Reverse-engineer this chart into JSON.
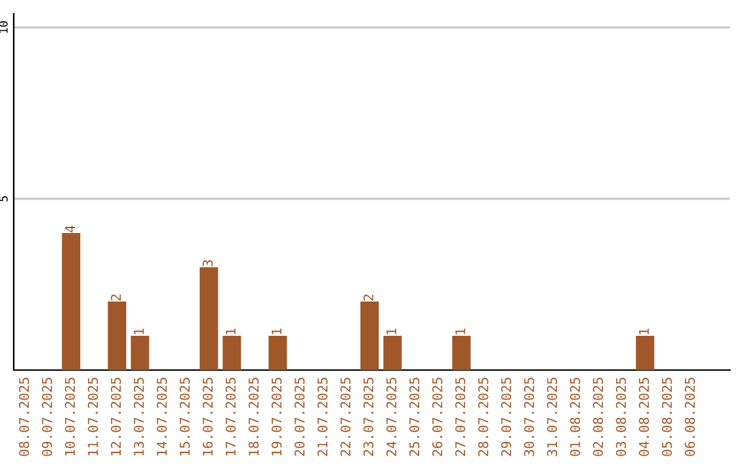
{
  "chart_data": {
    "type": "bar",
    "categories": [
      "08.07.2025",
      "09.07.2025",
      "10.07.2025",
      "11.07.2025",
      "12.07.2025",
      "13.07.2025",
      "14.07.2025",
      "15.07.2025",
      "16.07.2025",
      "17.07.2025",
      "18.07.2025",
      "19.07.2025",
      "20.07.2025",
      "21.07.2025",
      "22.07.2025",
      "23.07.2025",
      "24.07.2025",
      "25.07.2025",
      "26.07.2025",
      "27.07.2025",
      "28.07.2025",
      "29.07.2025",
      "30.07.2025",
      "31.07.2025",
      "01.08.2025",
      "02.08.2025",
      "03.08.2025",
      "04.08.2025",
      "05.08.2025",
      "06.08.2025"
    ],
    "values": [
      0,
      0,
      4,
      0,
      2,
      1,
      0,
      0,
      3,
      1,
      0,
      1,
      0,
      0,
      0,
      2,
      1,
      0,
      0,
      1,
      0,
      0,
      0,
      0,
      0,
      0,
      0,
      1,
      0,
      0
    ],
    "value_labels": [
      null,
      null,
      "4",
      null,
      "2",
      "1",
      null,
      null,
      "3",
      "1",
      null,
      "1",
      null,
      null,
      null,
      "2",
      "1",
      null,
      null,
      "1",
      null,
      null,
      null,
      null,
      null,
      null,
      null,
      "1",
      null,
      null
    ],
    "color": "#a0582a",
    "ylim": [
      0,
      10.4
    ],
    "yticks": [
      5,
      10
    ],
    "grid": "y"
  }
}
